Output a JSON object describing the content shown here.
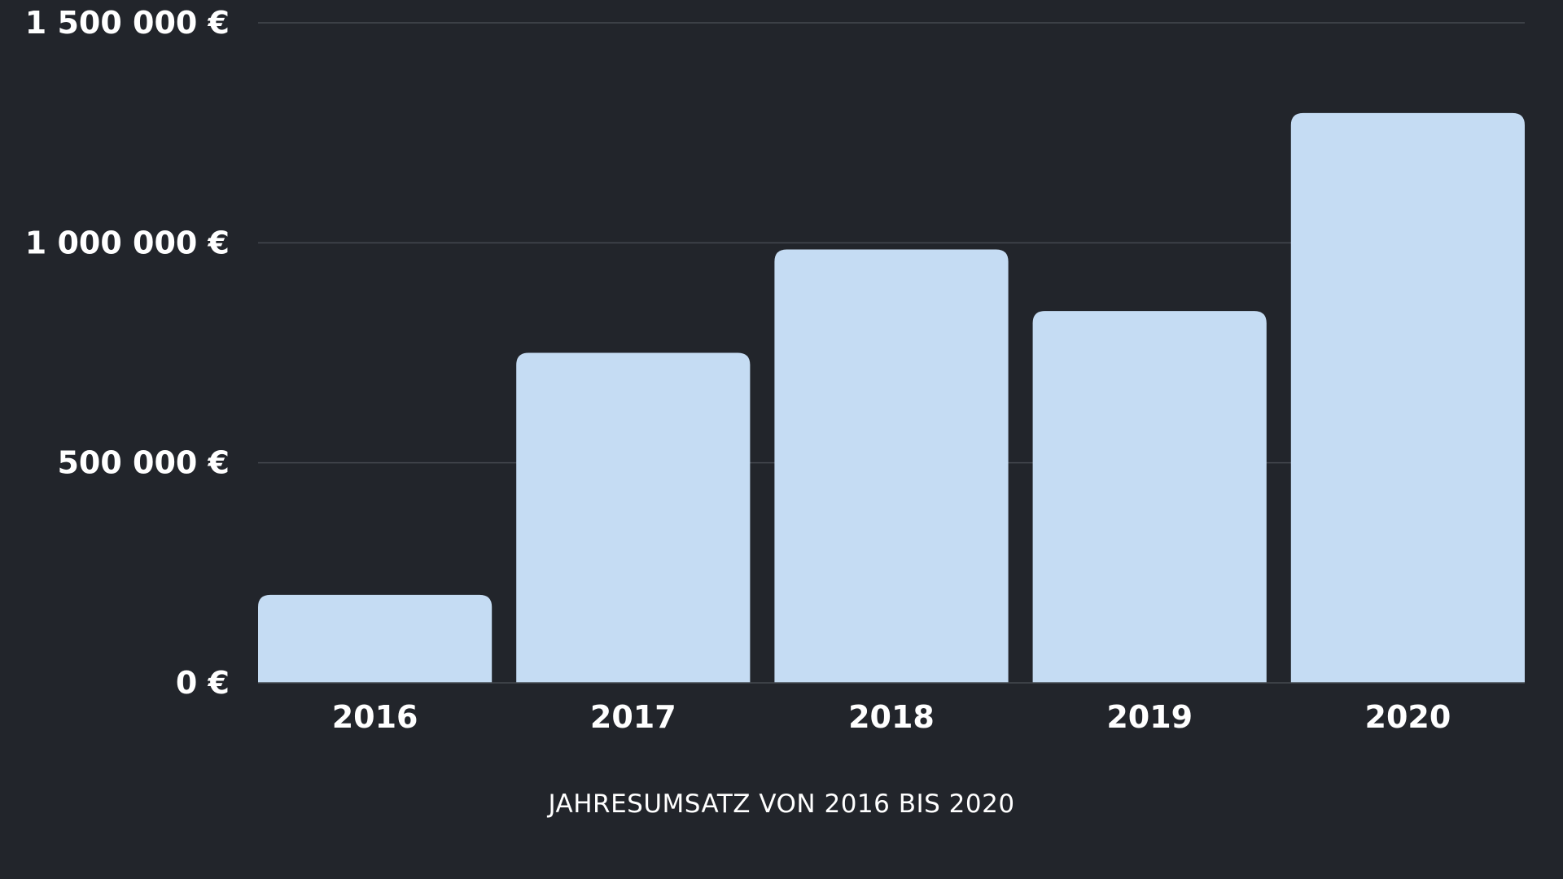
{
  "colors": {
    "background": "#22252b",
    "bar": "#c5dcf3",
    "gridline": "#454950",
    "text": "#ffffff"
  },
  "chart_data": {
    "type": "bar",
    "categories": [
      "2016",
      "2017",
      "2018",
      "2019",
      "2020"
    ],
    "values": [
      200000,
      750000,
      985000,
      845000,
      1295000
    ],
    "title": "",
    "xlabel": "JAHRESUMSATZ VON 2016 BIS 2020",
    "ylabel": "",
    "ylim": [
      0,
      1500000
    ],
    "y_ticks": [
      0,
      500000,
      1000000,
      1500000
    ],
    "y_tick_labels": [
      "0 €",
      "500 000 €",
      "1 000 000 €",
      "1 500 000 €"
    ],
    "grid": true,
    "legend": "none"
  }
}
